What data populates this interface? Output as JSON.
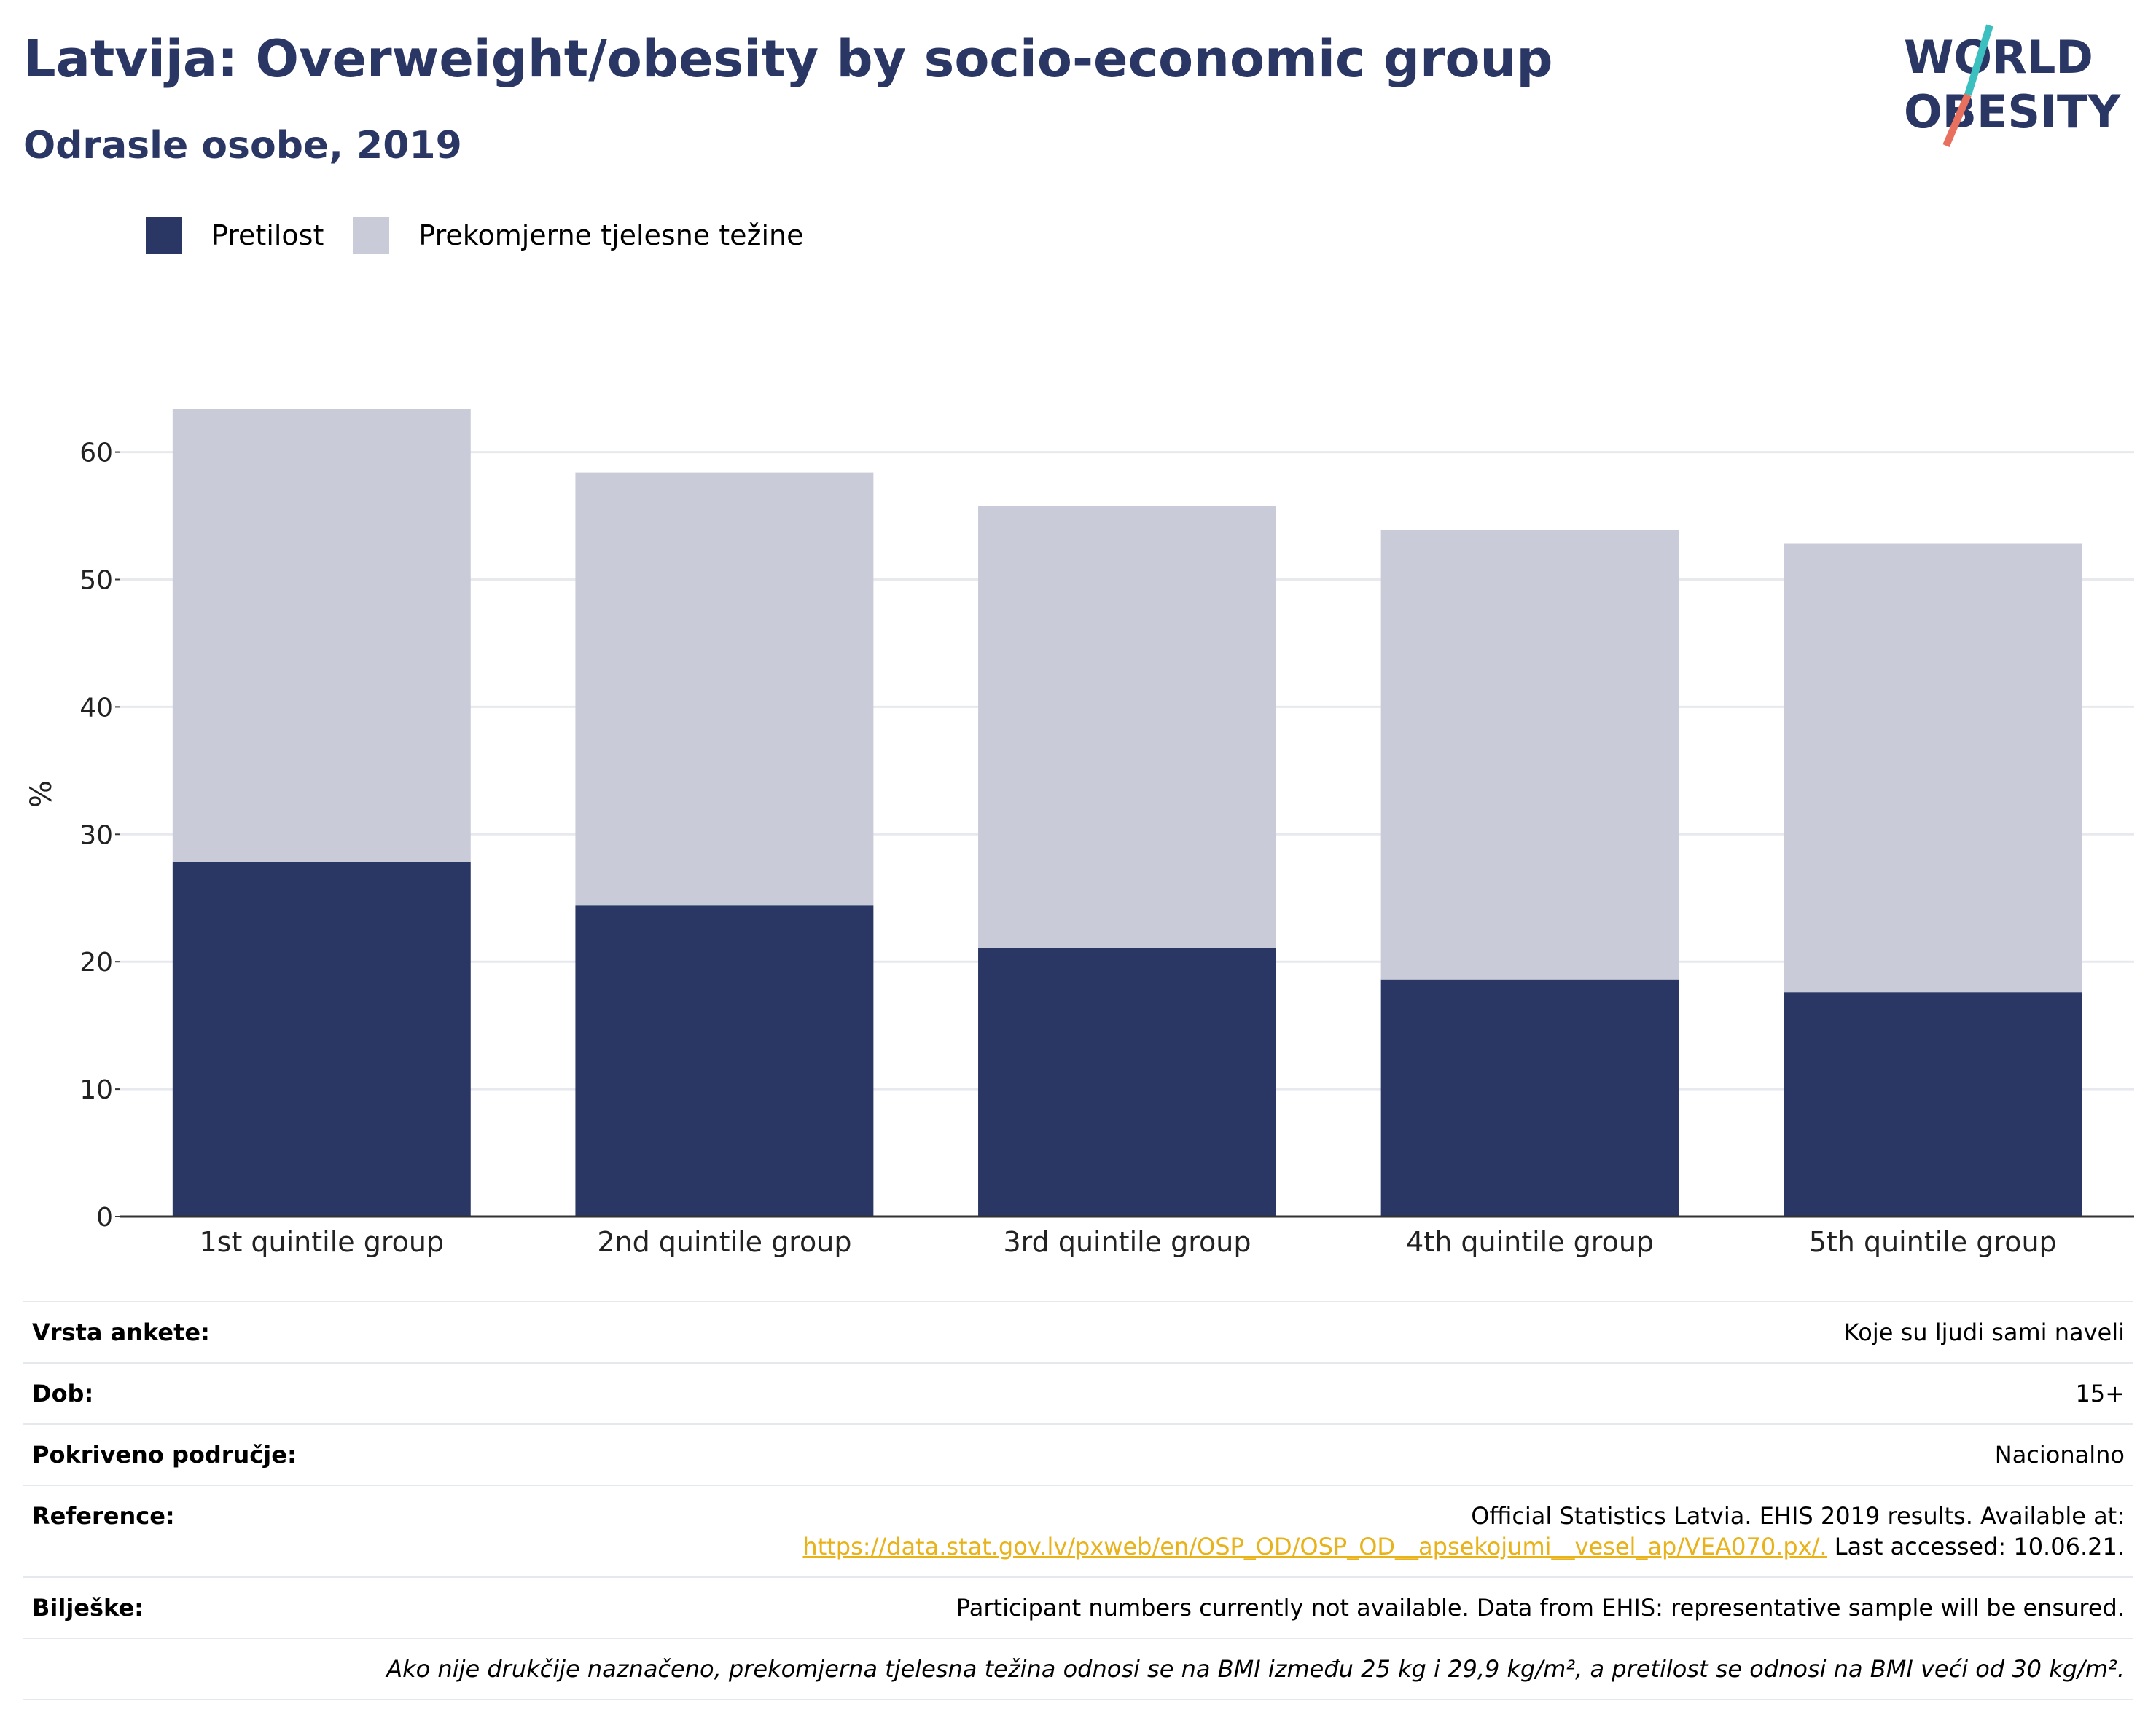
{
  "header": {
    "title": "Latvija: Overweight/obesity by socio-economic group",
    "subtitle": "Odrasle osobe, 2019",
    "logo_line1": "WORLD",
    "logo_line2": "OBESITY"
  },
  "colors": {
    "obesity": "#2a3663",
    "overweight": "#c9ccd8",
    "title": "#2a3663",
    "link": "#e8b21a",
    "logo_teal": "#3bbfbf",
    "logo_red": "#e8705f"
  },
  "chart_data": {
    "type": "bar",
    "stacked": true,
    "categories": [
      "1st quintile group",
      "2nd quintile group",
      "3rd quintile group",
      "4th quintile group",
      "5th quintile group"
    ],
    "series": [
      {
        "name": "Pretilost",
        "values": [
          27.8,
          24.4,
          21.1,
          18.6,
          17.6
        ]
      },
      {
        "name": "Prekomjerne tjelesne težine",
        "values": [
          35.6,
          34.0,
          34.7,
          35.3,
          35.2
        ]
      }
    ],
    "totals": [
      63.4,
      58.4,
      55.8,
      53.9,
      52.8
    ],
    "ylabel": "%",
    "yticks": [
      0,
      10,
      20,
      30,
      40,
      50,
      60
    ],
    "ylim": [
      0,
      63.4
    ],
    "grid": true,
    "legend_position": "top-left"
  },
  "info": {
    "survey_label": "Vrsta ankete:",
    "survey_value": "Koje su ljudi sami naveli",
    "age_label": "Dob:",
    "age_value": "15+",
    "coverage_label": "Pokriveno područje:",
    "coverage_value": "Nacionalno",
    "reference_label": "Reference:",
    "reference_line1": "Official Statistics Latvia. EHIS 2019 results. Available at:",
    "reference_link": "https://data.stat.gov.lv/pxweb/en/OSP_OD/OSP_OD__apsekojumi__vesel_ap/VEA070.px/.",
    "reference_tail": " Last accessed: 10.06.21.",
    "notes_label": "Bilješke:",
    "notes_value": "Participant numbers currently not available. Data from EHIS: representative sample will be ensured.",
    "definition": "Ako nije drukčije naznačeno, prekomjerna tjelesna težina odnosi se na BMI između 25 kg i 29,9 kg/m², a pretilost se odnosi na BMI veći od 30 kg/m²."
  }
}
